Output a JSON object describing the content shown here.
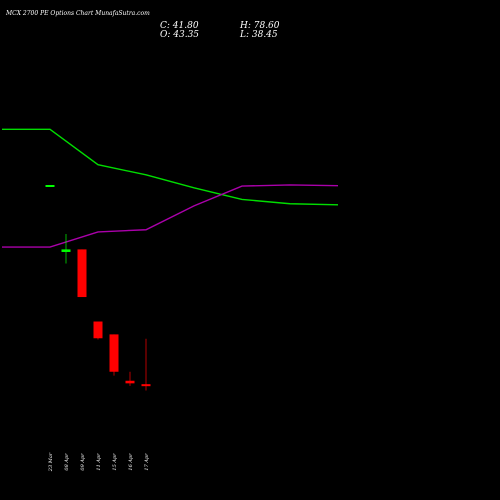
{
  "header": {
    "title": "MCX 2700 PE Options Chart MunafaSutra.com",
    "close_text": "C: 41.80",
    "open_text": "O: 43.35",
    "high_text": "H: 78.60",
    "low_text": "L: 38.45"
  },
  "chart_data": {
    "type": "candlestick",
    "background": "#000000",
    "colors": {
      "up": "#00ff00",
      "down": "#ff0000",
      "line_green": "#00dd00",
      "line_magenta": "#aa00aa"
    },
    "categories": [
      "23 Mar",
      "08 Apr",
      "09 Apr",
      "11 Apr",
      "15 Apr",
      "16 Apr",
      "17 Apr"
    ],
    "candles": [
      {
        "date": "23 Mar",
        "open": 198,
        "high": 198,
        "low": 198,
        "close": 198
      },
      {
        "date": "08 Apr",
        "open": 146,
        "high": 160,
        "low": 137,
        "close": 148
      },
      {
        "date": "09 Apr",
        "open": 148,
        "high": 148,
        "low": 111,
        "close": 111
      },
      {
        "date": "11 Apr",
        "open": 92,
        "high": 92,
        "low": 78,
        "close": 79
      },
      {
        "date": "15 Apr",
        "open": 82,
        "high": 82,
        "low": 50,
        "close": 53
      },
      {
        "date": "16 Apr",
        "open": 46,
        "high": 53,
        "low": 42,
        "close": 44
      },
      {
        "date": "17 Apr",
        "open": 43.35,
        "high": 78.6,
        "low": 38.45,
        "close": 41.8
      }
    ],
    "lines": [
      {
        "color": "green",
        "values": [
          [
            -3,
            0.86
          ],
          [
            0,
            0.86
          ],
          [
            3,
            0.762
          ],
          [
            6,
            0.734
          ],
          [
            9,
            0.698
          ],
          [
            12,
            0.666
          ],
          [
            15,
            0.654
          ],
          [
            18,
            0.651
          ]
        ]
      },
      {
        "color": "magenta",
        "values": [
          [
            -3,
            0.534
          ],
          [
            0,
            0.534
          ],
          [
            3,
            0.576
          ],
          [
            6,
            0.582
          ],
          [
            9,
            0.648
          ],
          [
            12,
            0.703
          ],
          [
            15,
            0.706
          ],
          [
            18,
            0.704
          ]
        ]
      }
    ],
    "price_range": [
      0,
      330
    ]
  }
}
